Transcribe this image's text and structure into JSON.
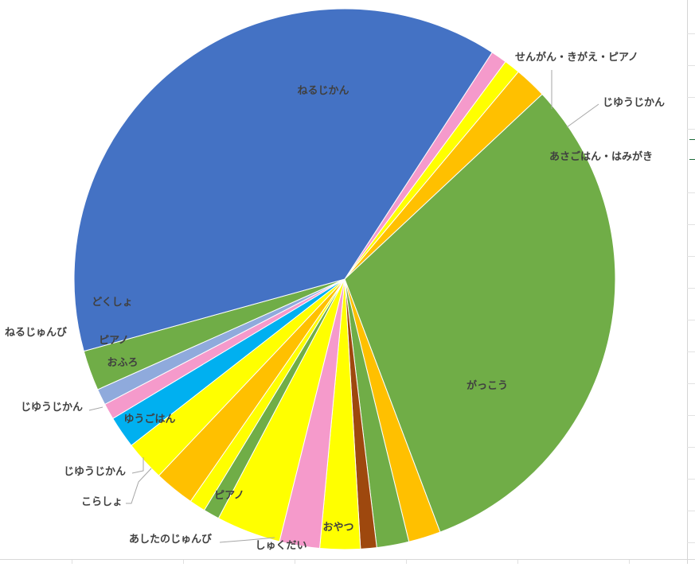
{
  "chart_data": {
    "type": "pie",
    "title": "",
    "start_angle_deg": 57,
    "slices": [
      {
        "label": "せんがん・きがえ・ピアノ",
        "value": 10,
        "color": "#F59ACB",
        "label_pos": "outside"
      },
      {
        "label": "じゆうじかん",
        "value": 10,
        "color": "#FFFF00",
        "label_pos": "outside"
      },
      {
        "label": "あさごはん・はみがき",
        "value": 20,
        "color": "#FFC000",
        "label_pos": "outside"
      },
      {
        "label": "がっこう",
        "value": 325,
        "color": "#70AD47",
        "label_pos": "inside"
      },
      {
        "label": "おやつ",
        "value": 20,
        "color": "#FFC000",
        "label_pos": "inside"
      },
      {
        "label": "しゅくだい",
        "value": 20,
        "color": "#70AD47",
        "label_pos": "inside"
      },
      {
        "label": "",
        "value": 10,
        "color": "#9E480E",
        "label_pos": "none"
      },
      {
        "label": "",
        "value": 25,
        "color": "#FFFF00",
        "label_pos": "none"
      },
      {
        "label": "ピアノ",
        "value": 25,
        "color": "#F59ACB",
        "label_pos": "inside"
      },
      {
        "label": "",
        "value": 40,
        "color": "#FFFF00",
        "label_pos": "none"
      },
      {
        "label": "こらしょ",
        "value": 10,
        "color": "#70AD47",
        "label_pos": "outside"
      },
      {
        "label": "じゆうじかん",
        "value": 10,
        "color": "#FFFF00",
        "label_pos": "outside"
      },
      {
        "label": "ゆうごはん",
        "value": 25,
        "color": "#FFC000",
        "label_pos": "inside"
      },
      {
        "label": "じゆうじかん",
        "value": 25,
        "color": "#FFFF00",
        "label_pos": "outside"
      },
      {
        "label": "おふろ",
        "value": 20,
        "color": "#00B0F0",
        "label_pos": "inside"
      },
      {
        "label": "ピアノ",
        "value": 10,
        "color": "#F59ACB",
        "label_pos": "inside"
      },
      {
        "label": "ねるじゅんび",
        "value": 10,
        "color": "#8FAADC",
        "label_pos": "outside"
      },
      {
        "label": "どくしょ",
        "value": 25,
        "color": "#70AD47",
        "label_pos": "inside"
      },
      {
        "label": "ねるじかん",
        "value": 400,
        "color": "#4472C4",
        "label_pos": "inside"
      },
      {
        "label": "あしたのじゅんび",
        "value": 0,
        "color": "#A5A5A5",
        "label_pos": "outside"
      }
    ],
    "legend": "none"
  }
}
